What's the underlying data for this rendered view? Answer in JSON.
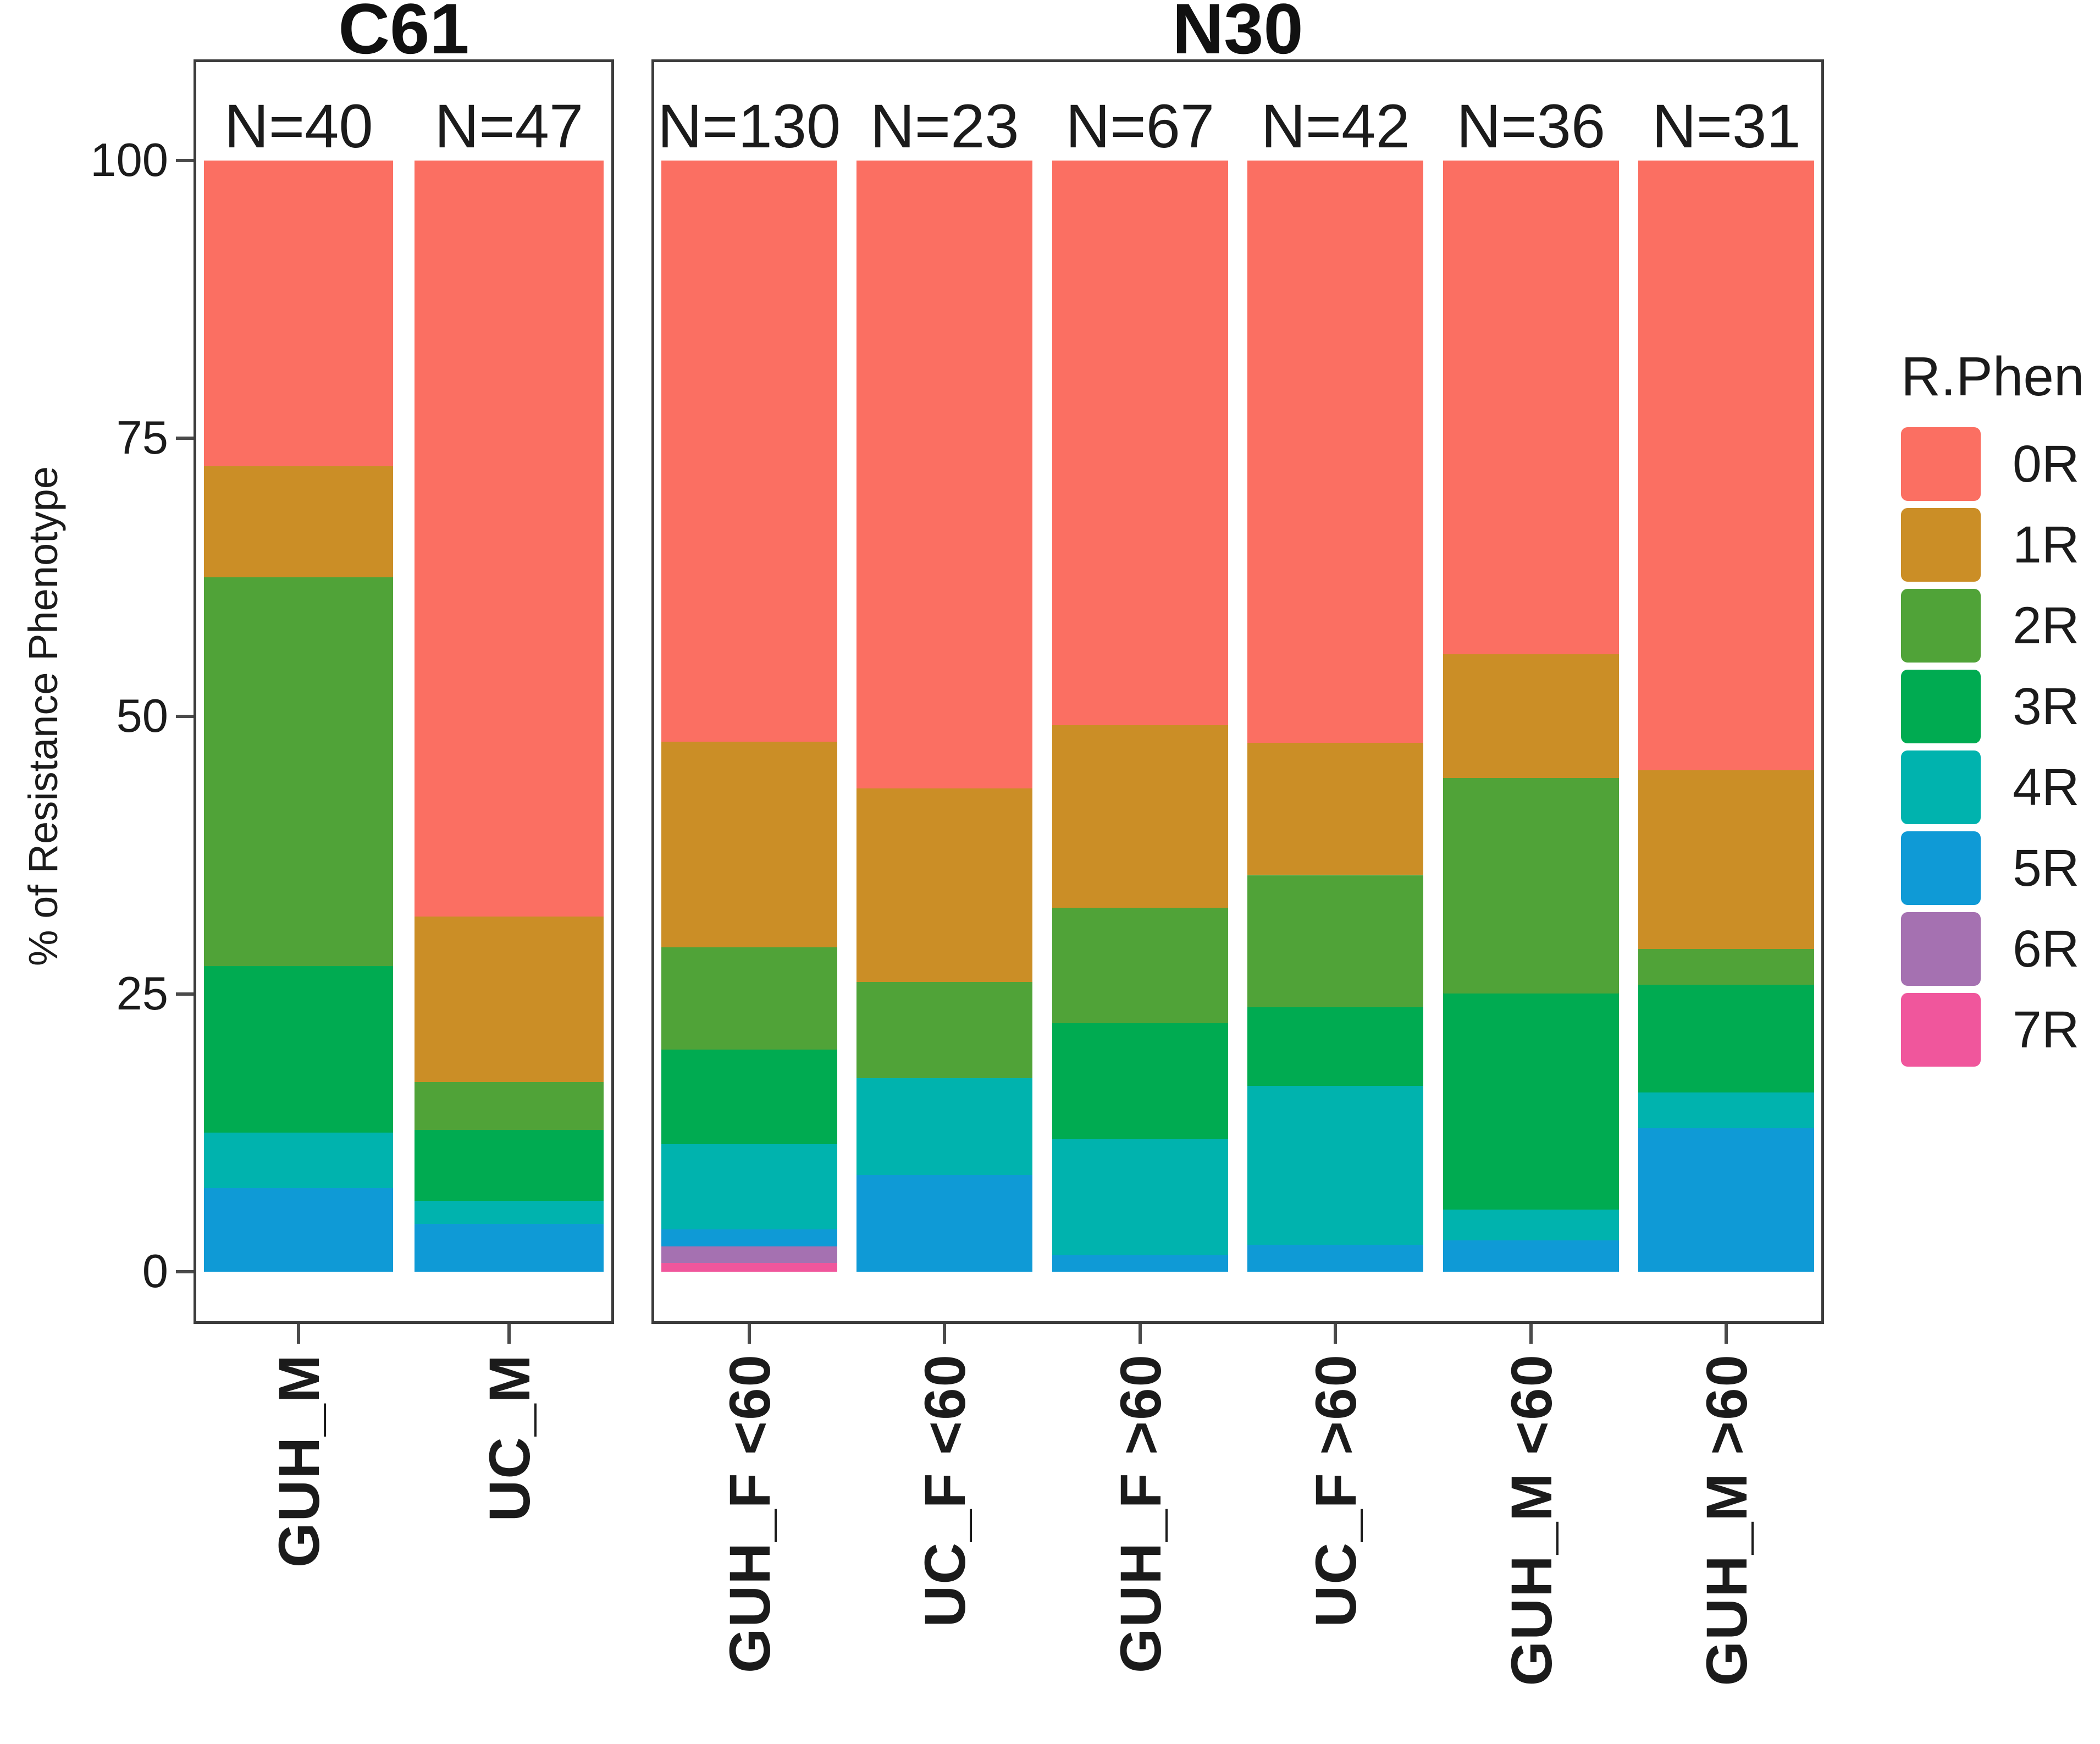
{
  "chart_data": {
    "type": "bar",
    "stacked": true,
    "orientation": "vertical",
    "title": "",
    "ylabel": "% of Resistance Phenotype",
    "xlabel": "",
    "ylim": [
      0,
      100
    ],
    "yticks": [
      0,
      25,
      50,
      75,
      100
    ],
    "grid": false,
    "legend": {
      "title": "R.Phen",
      "position": "right",
      "entries": [
        "0R",
        "1R",
        "2R",
        "3R",
        "4R",
        "5R",
        "6R",
        "7R"
      ]
    },
    "colors": {
      "0R": "#FB6F62",
      "1R": "#CB8E26",
      "2R": "#50A338",
      "3R": "#00AB51",
      "4R": "#00B3AE",
      "5R": "#0F9AD6",
      "6R": "#A571B1",
      "7R": "#F0569C"
    },
    "stack_order_bottom_to_top": [
      "7R",
      "6R",
      "5R",
      "4R",
      "3R",
      "2R",
      "1R",
      "0R"
    ],
    "facets": [
      {
        "label": "C61",
        "bars": [
          {
            "category": "GUH_M",
            "n_label": "N=40",
            "values": {
              "0R": 27.5,
              "1R": 10.0,
              "2R": 35.0,
              "3R": 15.0,
              "4R": 5.0,
              "5R": 7.5,
              "6R": 0,
              "7R": 0
            }
          },
          {
            "category": "UC_M",
            "n_label": "N=47",
            "values": {
              "0R": 68.1,
              "1R": 14.9,
              "2R": 4.3,
              "3R": 6.4,
              "4R": 2.1,
              "5R": 4.3,
              "6R": 0,
              "7R": 0
            }
          }
        ]
      },
      {
        "label": "N30",
        "bars": [
          {
            "category": "GUH_F <60",
            "n_label": "N=130",
            "values": {
              "0R": 52.3,
              "1R": 18.5,
              "2R": 9.2,
              "3R": 8.5,
              "4R": 7.7,
              "5R": 1.5,
              "6R": 1.5,
              "7R": 0.8
            }
          },
          {
            "category": "UC_F <60",
            "n_label": "N=23",
            "values": {
              "0R": 56.5,
              "1R": 17.4,
              "2R": 8.7,
              "3R": 0,
              "4R": 8.7,
              "5R": 8.7,
              "6R": 0,
              "7R": 0
            }
          },
          {
            "category": "GUH_F >60",
            "n_label": "N=67",
            "values": {
              "0R": 50.7,
              "1R": 16.4,
              "2R": 10.4,
              "3R": 10.4,
              "4R": 10.4,
              "5R": 1.5,
              "6R": 0,
              "7R": 0
            }
          },
          {
            "category": "UC_F >60",
            "n_label": "N=42",
            "values": {
              "0R": 52.4,
              "1R": 11.9,
              "2R": 11.9,
              "3R": 7.1,
              "4R": 14.3,
              "5R": 2.4,
              "6R": 0,
              "7R": 0
            }
          },
          {
            "category": "GUH_M <60",
            "n_label": "N=36",
            "values": {
              "0R": 44.4,
              "1R": 11.1,
              "2R": 19.4,
              "3R": 19.4,
              "4R": 2.8,
              "5R": 2.8,
              "6R": 0,
              "7R": 0
            }
          },
          {
            "category": "GUH_M >60",
            "n_label": "N=31",
            "values": {
              "0R": 54.8,
              "1R": 16.1,
              "2R": 3.2,
              "3R": 9.7,
              "4R": 3.2,
              "5R": 12.9,
              "6R": 0,
              "7R": 0
            }
          }
        ]
      }
    ]
  }
}
